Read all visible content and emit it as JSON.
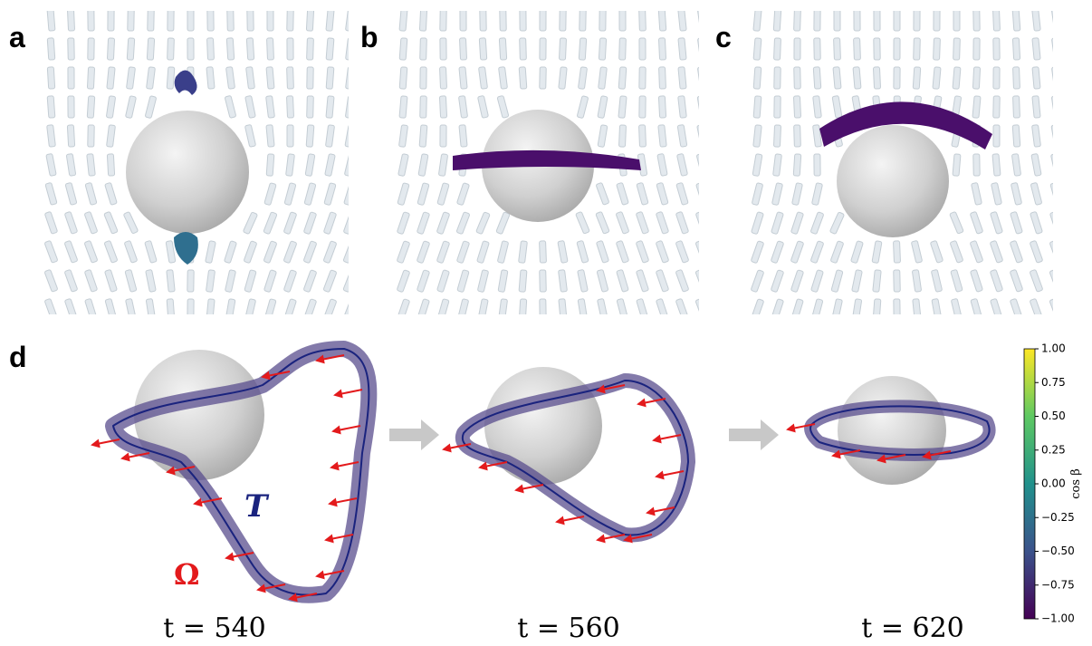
{
  "panel_labels": [
    "a",
    "b",
    "c",
    "d"
  ],
  "annotations": {
    "tangent": "T",
    "rotation": "Ω"
  },
  "time_labels": [
    "t = 540",
    "t = 560",
    "t = 620"
  ],
  "colorbar": {
    "label": "cos β",
    "lim": [
      -1,
      1
    ],
    "ticks": [
      {
        "value": 1,
        "label": "1.00"
      },
      {
        "value": 0.75,
        "label": "0.75"
      },
      {
        "value": 0.5,
        "label": "0.50"
      },
      {
        "value": 0.25,
        "label": "0.25"
      },
      {
        "value": 0,
        "label": "0.00"
      },
      {
        "value": -0.25,
        "label": "−0.25"
      },
      {
        "value": -0.5,
        "label": "−0.50"
      },
      {
        "value": -0.75,
        "label": "−0.75"
      },
      {
        "value": -1,
        "label": "−1.00"
      }
    ]
  }
}
